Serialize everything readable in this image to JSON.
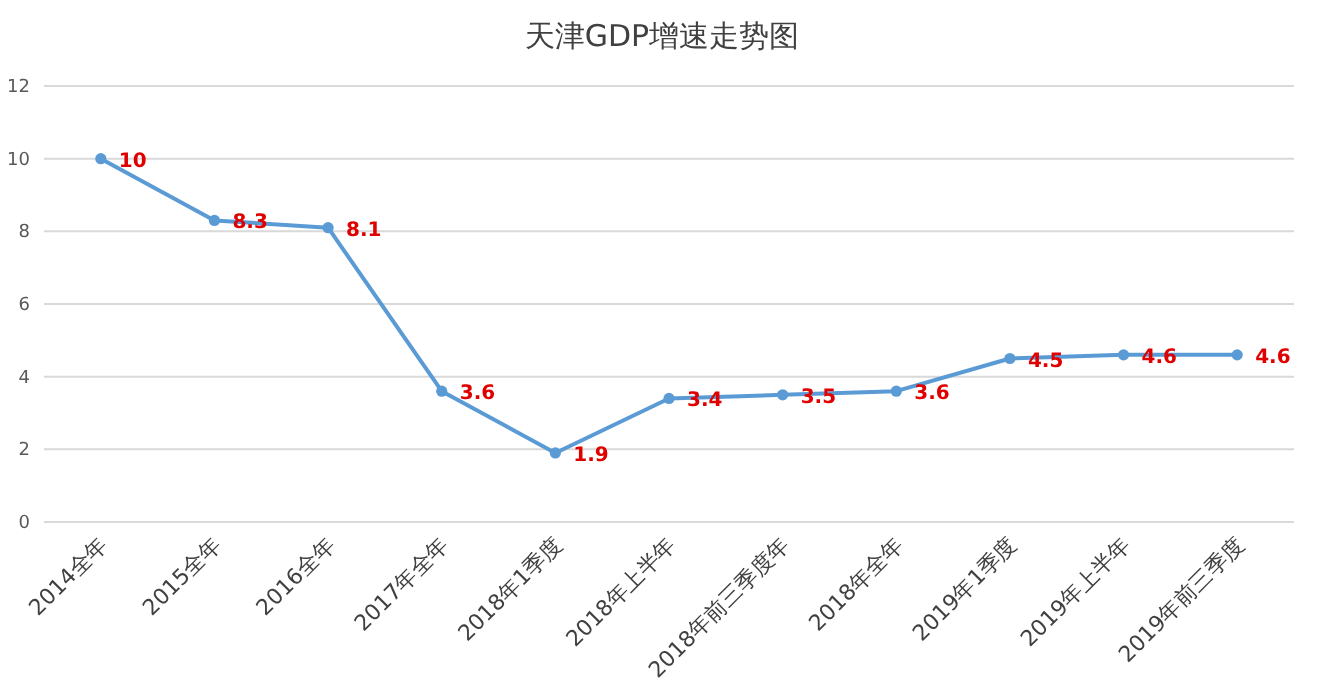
{
  "chart_data": {
    "type": "line",
    "title": "天津GDP增速走势图",
    "categories": [
      "2014全年",
      "2015全年",
      "2016全年",
      "2017年全年",
      "2018年1季度",
      "2018年上半年",
      "2018年前三季度年",
      "2018年全年",
      "2019年1季度",
      "2019年上半年",
      "2019年前三季度"
    ],
    "values": [
      10,
      8.3,
      8.1,
      3.6,
      1.9,
      3.4,
      3.5,
      3.6,
      4.5,
      4.6,
      4.6
    ],
    "color": "#5b9bd5",
    "ylim": [
      0,
      12
    ],
    "yticks": [
      0,
      2,
      4,
      6,
      8,
      10,
      12
    ],
    "grid": "y",
    "marker": "circle",
    "data_labels": true
  }
}
